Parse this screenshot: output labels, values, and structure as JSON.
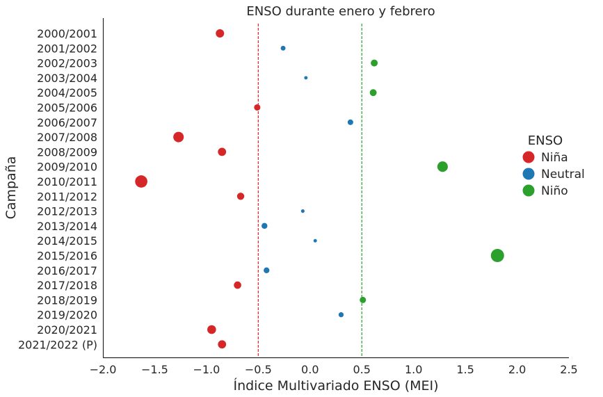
{
  "chart_data": {
    "type": "scatter",
    "title": "ENSO durante enero y febrero",
    "xlabel": "Índice Multivariado ENSO (MEI)",
    "ylabel": "Campaña",
    "xlim": [
      -2.0,
      2.5
    ],
    "xticks": [
      -2.0,
      -1.5,
      -1.0,
      -0.5,
      0.0,
      0.5,
      1.0,
      1.5,
      2.0,
      2.5
    ],
    "xtick_labels": [
      "−2.0",
      "−1.5",
      "−1.0",
      "−0.5",
      "0.0",
      "0.5",
      "1.0",
      "1.5",
      "2.0",
      "2.5"
    ],
    "grid": false,
    "legend": {
      "title": "ENSO",
      "position": "right",
      "entries": [
        "Niña",
        "Neutral",
        "Niño"
      ]
    },
    "colors": {
      "Niña": "#d62728",
      "Neutral": "#1f77b4",
      "Niño": "#2ca02c"
    },
    "reference_lines": [
      {
        "x": -0.5,
        "color": "#d62728",
        "style": "dashed"
      },
      {
        "x": 0.5,
        "color": "#2ca02c",
        "style": "dashed"
      }
    ],
    "categories": [
      "2000/2001",
      "2001/2002",
      "2002/2003",
      "2003/2004",
      "2004/2005",
      "2005/2006",
      "2006/2007",
      "2007/2008",
      "2008/2009",
      "2009/2010",
      "2010/2011",
      "2011/2012",
      "2012/2013",
      "2013/2014",
      "2014/2015",
      "2015/2016",
      "2016/2017",
      "2017/2018",
      "2018/2019",
      "2019/2020",
      "2020/2021",
      "2021/2022 (P)"
    ],
    "points": [
      {
        "campaign": "2000/2001",
        "mei": -0.87,
        "enso": "Niña"
      },
      {
        "campaign": "2001/2002",
        "mei": -0.26,
        "enso": "Neutral"
      },
      {
        "campaign": "2002/2003",
        "mei": 0.62,
        "enso": "Niño"
      },
      {
        "campaign": "2003/2004",
        "mei": -0.04,
        "enso": "Neutral"
      },
      {
        "campaign": "2004/2005",
        "mei": 0.61,
        "enso": "Niño"
      },
      {
        "campaign": "2005/2006",
        "mei": -0.51,
        "enso": "Niña"
      },
      {
        "campaign": "2006/2007",
        "mei": 0.39,
        "enso": "Neutral"
      },
      {
        "campaign": "2007/2008",
        "mei": -1.27,
        "enso": "Niña"
      },
      {
        "campaign": "2008/2009",
        "mei": -0.85,
        "enso": "Niña"
      },
      {
        "campaign": "2009/2010",
        "mei": 1.28,
        "enso": "Niño"
      },
      {
        "campaign": "2010/2011",
        "mei": -1.63,
        "enso": "Niña"
      },
      {
        "campaign": "2011/2012",
        "mei": -0.67,
        "enso": "Niña"
      },
      {
        "campaign": "2012/2013",
        "mei": -0.07,
        "enso": "Neutral"
      },
      {
        "campaign": "2013/2014",
        "mei": -0.44,
        "enso": "Neutral"
      },
      {
        "campaign": "2014/2015",
        "mei": 0.05,
        "enso": "Neutral"
      },
      {
        "campaign": "2015/2016",
        "mei": 1.81,
        "enso": "Niño"
      },
      {
        "campaign": "2016/2017",
        "mei": -0.42,
        "enso": "Neutral"
      },
      {
        "campaign": "2017/2018",
        "mei": -0.7,
        "enso": "Niña"
      },
      {
        "campaign": "2018/2019",
        "mei": 0.51,
        "enso": "Niño"
      },
      {
        "campaign": "2019/2020",
        "mei": 0.3,
        "enso": "Neutral"
      },
      {
        "campaign": "2020/2021",
        "mei": -0.95,
        "enso": "Niña"
      },
      {
        "campaign": "2021/2022 (P)",
        "mei": -0.85,
        "enso": "Niña"
      }
    ]
  }
}
